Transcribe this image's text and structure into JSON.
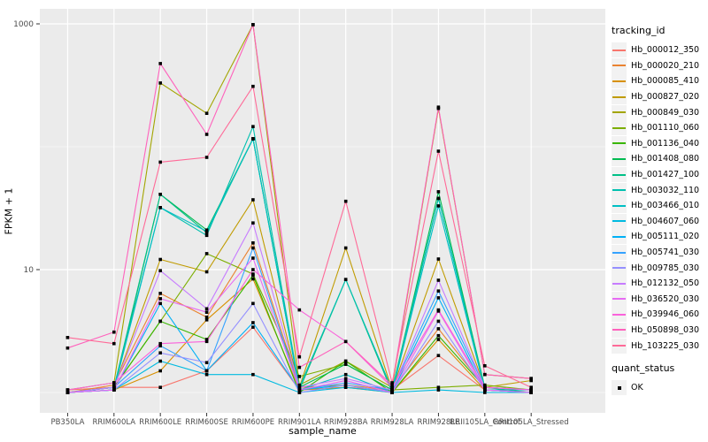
{
  "legend": {
    "tracking_title": "tracking_id",
    "quant_title": "quant_status",
    "quant_label": "OK"
  },
  "colors": {
    "panel_bg": "#EBEBEB",
    "grid": "#FFFFFF",
    "axis_text": "#4D4D4D",
    "tick_mark": "#333333",
    "point": "#000000",
    "legend_key_bg": "#F2F2F2"
  },
  "chart_data": {
    "type": "line",
    "title": "",
    "xlabel": "sample_name",
    "ylabel": "FPKM + 1",
    "y_scale": "log10",
    "ylim": [
      0.68,
      1320
    ],
    "grid": true,
    "legend_position": "right",
    "y_major_ticks": [
      {
        "label": "1000",
        "value": 1000
      },
      {
        "label": "10",
        "value": 10
      }
    ],
    "y_minor_gridlines": [
      100,
      1
    ],
    "point_shape": "square",
    "quant_status": "OK",
    "categories": [
      "PB350LA",
      "RRIM600LA",
      "RRIM600LE",
      "RRIM600SE",
      "RRIM600PE",
      "RRIM901LA",
      "RRIM928BA",
      "RRIM928LA",
      "RRIM928LE",
      "RRII105LA_Control",
      "RRII105LA_Stressed"
    ],
    "series": [
      {
        "name": "Hb_000012_350",
        "color": "#F8766D",
        "values": [
          1.05,
          1.1,
          1.1,
          1.5,
          3.4,
          1.05,
          1.1,
          1.05,
          2.0,
          1.05,
          1.0
        ]
      },
      {
        "name": "Hb_000020_210",
        "color": "#EA8331",
        "values": [
          1.0,
          1.15,
          6.4,
          4.1,
          16.5,
          1.1,
          1.15,
          1.05,
          3.3,
          1.1,
          1.05
        ]
      },
      {
        "name": "Hb_000085_410",
        "color": "#D89000",
        "values": [
          1.0,
          1.05,
          1.5,
          3.9,
          8.4,
          1.05,
          1.1,
          1.0,
          2.7,
          1.05,
          1.0
        ]
      },
      {
        "name": "Hb_000827_020",
        "color": "#C09B00",
        "values": [
          1.0,
          1.1,
          12.1,
          9.6,
          37.0,
          1.1,
          15.0,
          1.05,
          12.2,
          1.1,
          1.25
        ]
      },
      {
        "name": "Hb_000849_030",
        "color": "#A3A500",
        "values": [
          1.05,
          1.2,
          330,
          187,
          985,
          1.15,
          1.8,
          1.1,
          205,
          1.4,
          1.3
        ]
      },
      {
        "name": "Hb_001110_060",
        "color": "#7CAE00",
        "values": [
          1.0,
          1.1,
          3.8,
          13.5,
          9.2,
          1.35,
          1.7,
          1.05,
          1.1,
          1.15,
          1.05
        ]
      },
      {
        "name": "Hb_001136_040",
        "color": "#39B600",
        "values": [
          1.0,
          1.1,
          3.8,
          2.7,
          9.0,
          1.0,
          1.8,
          1.0,
          2.9,
          1.1,
          1.05
        ]
      },
      {
        "name": "Hb_001408_080",
        "color": "#00BB51",
        "values": [
          1.0,
          1.05,
          41.0,
          21.0,
          116,
          1.1,
          1.7,
          1.05,
          43.0,
          1.1,
          1.05
        ]
      },
      {
        "name": "Hb_001427_100",
        "color": "#00C087",
        "values": [
          1.0,
          1.1,
          41.0,
          20.0,
          116,
          1.05,
          8.3,
          1.0,
          38.0,
          1.1,
          1.0
        ]
      },
      {
        "name": "Hb_003032_110",
        "color": "#00C0AF",
        "values": [
          1.0,
          1.1,
          32.0,
          19.0,
          146,
          1.1,
          8.3,
          1.05,
          38.0,
          1.05,
          1.05
        ]
      },
      {
        "name": "Hb_003466_010",
        "color": "#00BFC4",
        "values": [
          1.0,
          1.05,
          32.0,
          20.5,
          116,
          1.05,
          1.4,
          1.0,
          33.0,
          1.05,
          1.0
        ]
      },
      {
        "name": "Hb_004607_060",
        "color": "#00BAE0",
        "values": [
          1.0,
          1.05,
          1.8,
          1.4,
          1.4,
          1.0,
          1.1,
          1.0,
          1.05,
          1.0,
          1.0
        ]
      },
      {
        "name": "Hb_005111_020",
        "color": "#00B0F6",
        "values": [
          1.0,
          1.05,
          5.3,
          1.5,
          3.7,
          1.05,
          1.15,
          1.0,
          5.9,
          1.05,
          1.0
        ]
      },
      {
        "name": "Hb_005741_030",
        "color": "#35A2FF",
        "values": [
          1.0,
          1.1,
          2.4,
          1.5,
          15.0,
          1.05,
          1.2,
          1.05,
          6.7,
          1.1,
          1.05
        ]
      },
      {
        "name": "Hb_009785_030",
        "color": "#9590FF",
        "values": [
          1.0,
          1.05,
          2.1,
          1.75,
          5.3,
          1.0,
          1.15,
          1.0,
          3.8,
          1.05,
          1.0
        ]
      },
      {
        "name": "Hb_012132_050",
        "color": "#C77CFF",
        "values": [
          1.0,
          1.1,
          9.8,
          4.8,
          24.0,
          1.1,
          1.3,
          1.05,
          8.2,
          1.1,
          1.05
        ]
      },
      {
        "name": "Hb_036520_030",
        "color": "#E76BF3",
        "values": [
          1.0,
          1.05,
          5.8,
          4.5,
          12.4,
          1.05,
          1.25,
          1.0,
          4.6,
          1.05,
          1.0
        ]
      },
      {
        "name": "Hb_039946_060",
        "color": "#FA62DB",
        "values": [
          1.05,
          1.2,
          2.5,
          2.6,
          10.0,
          4.7,
          2.6,
          1.1,
          4.7,
          1.1,
          1.05
        ]
      },
      {
        "name": "Hb_050898_030",
        "color": "#FF62BC",
        "values": [
          2.3,
          3.1,
          475,
          126,
          985,
          1.6,
          2.6,
          1.15,
          210,
          1.4,
          1.3
        ]
      },
      {
        "name": "Hb_103225_030",
        "color": "#FF6A98",
        "values": [
          2.8,
          2.5,
          75.0,
          82.0,
          310,
          1.95,
          36.0,
          1.2,
          92.0,
          1.65,
          1.1
        ]
      }
    ]
  }
}
